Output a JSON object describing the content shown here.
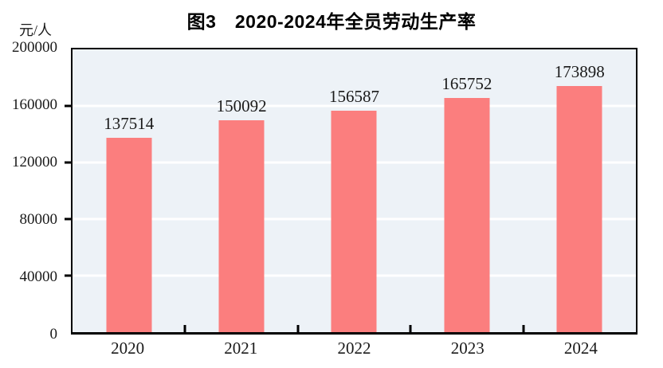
{
  "chart_data": {
    "type": "bar",
    "title": "图3　2020-2024年全员劳动生产率",
    "unit_label": "元/人",
    "categories": [
      "2020",
      "2021",
      "2022",
      "2023",
      "2024"
    ],
    "values": [
      137514,
      150092,
      156587,
      165752,
      173898
    ],
    "ylim": [
      0,
      200000
    ],
    "ytick_interval": 40000,
    "ytick_labels": [
      "200000",
      "160000",
      "120000",
      "80000",
      "40000",
      "0"
    ],
    "legend": "none",
    "grid": "horizontal-white",
    "bar_color": "#fb7e7e",
    "plot_background_color": "#edf2f7",
    "gridline_color": "#ffffff",
    "border_color": "#000000",
    "text_color": "#1a1a1a"
  }
}
